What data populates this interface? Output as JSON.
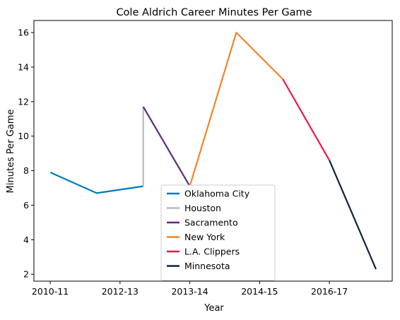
{
  "chart_data": {
    "type": "line",
    "title": "Cole Aldrich Career Minutes Per Game",
    "xlabel": "Year",
    "ylabel": "Minutes Per Game",
    "xlim": [
      -0.35,
      7.35
    ],
    "ylim": [
      1.6,
      16.7
    ],
    "xticks": [
      {
        "pos": 0,
        "label": "2010-11"
      },
      {
        "pos": 1.5,
        "label": "2012-13"
      },
      {
        "pos": 3,
        "label": "2013-14"
      },
      {
        "pos": 4.5,
        "label": "2014-15"
      },
      {
        "pos": 6,
        "label": "2016-17"
      }
    ],
    "yticks": [
      2,
      4,
      6,
      8,
      10,
      12,
      14,
      16
    ],
    "grid": false,
    "legend_position": "bottom-center",
    "series": [
      {
        "name": "Oklahoma City",
        "color": "#007ac1",
        "x": [
          0,
          1,
          2
        ],
        "y": [
          7.9,
          6.7,
          7.1
        ]
      },
      {
        "name": "Houston",
        "color": "#bababa",
        "x": [
          2,
          2
        ],
        "y": [
          7.1,
          11.7
        ]
      },
      {
        "name": "Sacramento",
        "color": "#5a2d81",
        "x": [
          2,
          3
        ],
        "y": [
          11.7,
          7.1
        ]
      },
      {
        "name": "New York",
        "color": "#f58426",
        "x": [
          3,
          4,
          5
        ],
        "y": [
          7.1,
          16.0,
          13.3
        ]
      },
      {
        "name": "L.A. Clippers",
        "color": "#ed174c",
        "x": [
          5,
          6
        ],
        "y": [
          13.3,
          8.6
        ]
      },
      {
        "name": "Minnesota",
        "color": "#0c2340",
        "x": [
          6,
          7
        ],
        "y": [
          8.6,
          2.3
        ]
      }
    ]
  }
}
